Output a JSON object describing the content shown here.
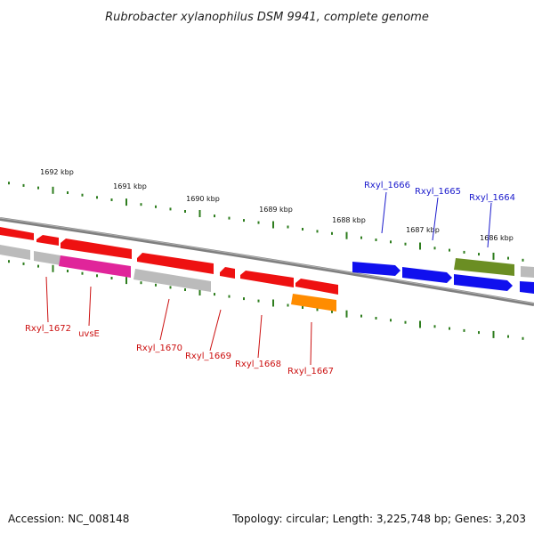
{
  "title": "Rubrobacter xylanophilus DSM 9941, complete genome",
  "footer": {
    "accession": "Accession: NC_008148",
    "topology": "Topology: circular; Length: 3,225,748 bp; Genes: 3,203"
  },
  "scale": {
    "unit": "kbp",
    "ticks": [
      {
        "label": "1692 kbp"
      },
      {
        "label": "1691 kbp"
      },
      {
        "label": "1690 kbp"
      },
      {
        "label": "1689 kbp"
      },
      {
        "label": "1688 kbp"
      },
      {
        "label": "1687 kbp"
      },
      {
        "label": "1686 kbp"
      }
    ]
  },
  "colors": {
    "backbone": "#7a7a7a",
    "ticks": "#2e7d1e",
    "forward_label": "#1a1acc",
    "reverse_label": "#cc1111",
    "red": "#ee1111",
    "gray": "#bbbbbb",
    "magenta": "#e0259a",
    "orange": "#ff8c00",
    "blue": "#1010ee",
    "olive": "#6b8e23"
  },
  "genes": [
    {
      "id": "g-red-0",
      "label": "",
      "strand": "minus",
      "color": "red"
    },
    {
      "id": "g-red-1",
      "label": "",
      "strand": "minus",
      "color": "red"
    },
    {
      "id": "g-red-2",
      "label": "",
      "strand": "minus",
      "color": "red"
    },
    {
      "id": "g-gray-0",
      "label": "",
      "strand": "minus",
      "color": "gray"
    },
    {
      "id": "g-gray-1",
      "label": "Rxyl_1672",
      "strand": "minus",
      "color": "gray"
    },
    {
      "id": "g-magenta",
      "label": "uvsE",
      "strand": "minus",
      "color": "magenta"
    },
    {
      "id": "g-gray-2",
      "label": "Rxyl_1670",
      "strand": "minus",
      "color": "gray"
    },
    {
      "id": "g-red-3",
      "label": "",
      "strand": "minus",
      "color": "red"
    },
    {
      "id": "g-red-4",
      "label": "Rxyl_1669",
      "strand": "minus",
      "color": "red"
    },
    {
      "id": "g-red-5",
      "label": "Rxyl_1668",
      "strand": "minus",
      "color": "red"
    },
    {
      "id": "g-red-6",
      "label": "",
      "strand": "minus",
      "color": "red"
    },
    {
      "id": "g-orange",
      "label": "Rxyl_1667",
      "strand": "minus",
      "color": "orange"
    },
    {
      "id": "g-blue-0",
      "label": "Rxyl_1666",
      "strand": "plus",
      "color": "blue"
    },
    {
      "id": "g-blue-1",
      "label": "Rxyl_1665",
      "strand": "plus",
      "color": "blue"
    },
    {
      "id": "g-blue-2",
      "label": "",
      "strand": "plus",
      "color": "blue"
    },
    {
      "id": "g-blue-3",
      "label": "",
      "strand": "plus",
      "color": "blue"
    },
    {
      "id": "g-olive",
      "label": "Rxyl_1664",
      "strand": "plus",
      "color": "olive"
    },
    {
      "id": "g-gray-3",
      "label": "",
      "strand": "plus",
      "color": "gray"
    }
  ]
}
